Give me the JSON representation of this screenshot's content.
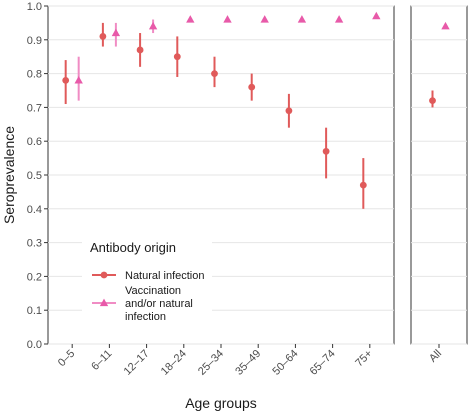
{
  "chart_data": {
    "type": "scatter",
    "xlabel": "Age groups",
    "ylabel": "Seroprevalence",
    "ylim": [
      0.0,
      1.0
    ],
    "yticks": [
      "0.0",
      "0.1",
      "0.2",
      "0.3",
      "0.4",
      "0.5",
      "0.6",
      "0.7",
      "0.8",
      "0.9",
      "1.0"
    ],
    "grid": true,
    "categories": [
      "0–5",
      "6–11",
      "12–17",
      "18–24",
      "25–34",
      "35–49",
      "50–64",
      "65–74",
      "75+"
    ],
    "overall_category": "All",
    "legend": {
      "title": "Antibody origin",
      "placement": "bottom-left"
    },
    "series": [
      {
        "name": "Natural infection",
        "marker": "circle",
        "color": "#e05a5a",
        "values": [
          0.78,
          0.91,
          0.87,
          0.85,
          0.8,
          0.76,
          0.69,
          0.57,
          0.47
        ],
        "lower": [
          0.71,
          0.88,
          0.82,
          0.79,
          0.76,
          0.72,
          0.64,
          0.49,
          0.4
        ],
        "upper": [
          0.84,
          0.95,
          0.92,
          0.91,
          0.85,
          0.8,
          0.74,
          0.64,
          0.55
        ],
        "overall": {
          "value": 0.72,
          "lower": 0.7,
          "upper": 0.75
        }
      },
      {
        "name": "Vaccination\nand/or natural\ninfection",
        "marker": "triangle",
        "color": "#e85aa9",
        "errcolor": "#f08cc4",
        "values": [
          0.78,
          0.92,
          0.94,
          0.96,
          0.96,
          0.96,
          0.96,
          0.96,
          0.97
        ],
        "lower": [
          0.72,
          0.88,
          0.92,
          null,
          null,
          null,
          null,
          null,
          null
        ],
        "upper": [
          0.85,
          0.95,
          0.96,
          null,
          null,
          null,
          null,
          null,
          null
        ],
        "overall": {
          "value": 0.94,
          "lower": null,
          "upper": null
        }
      }
    ]
  }
}
